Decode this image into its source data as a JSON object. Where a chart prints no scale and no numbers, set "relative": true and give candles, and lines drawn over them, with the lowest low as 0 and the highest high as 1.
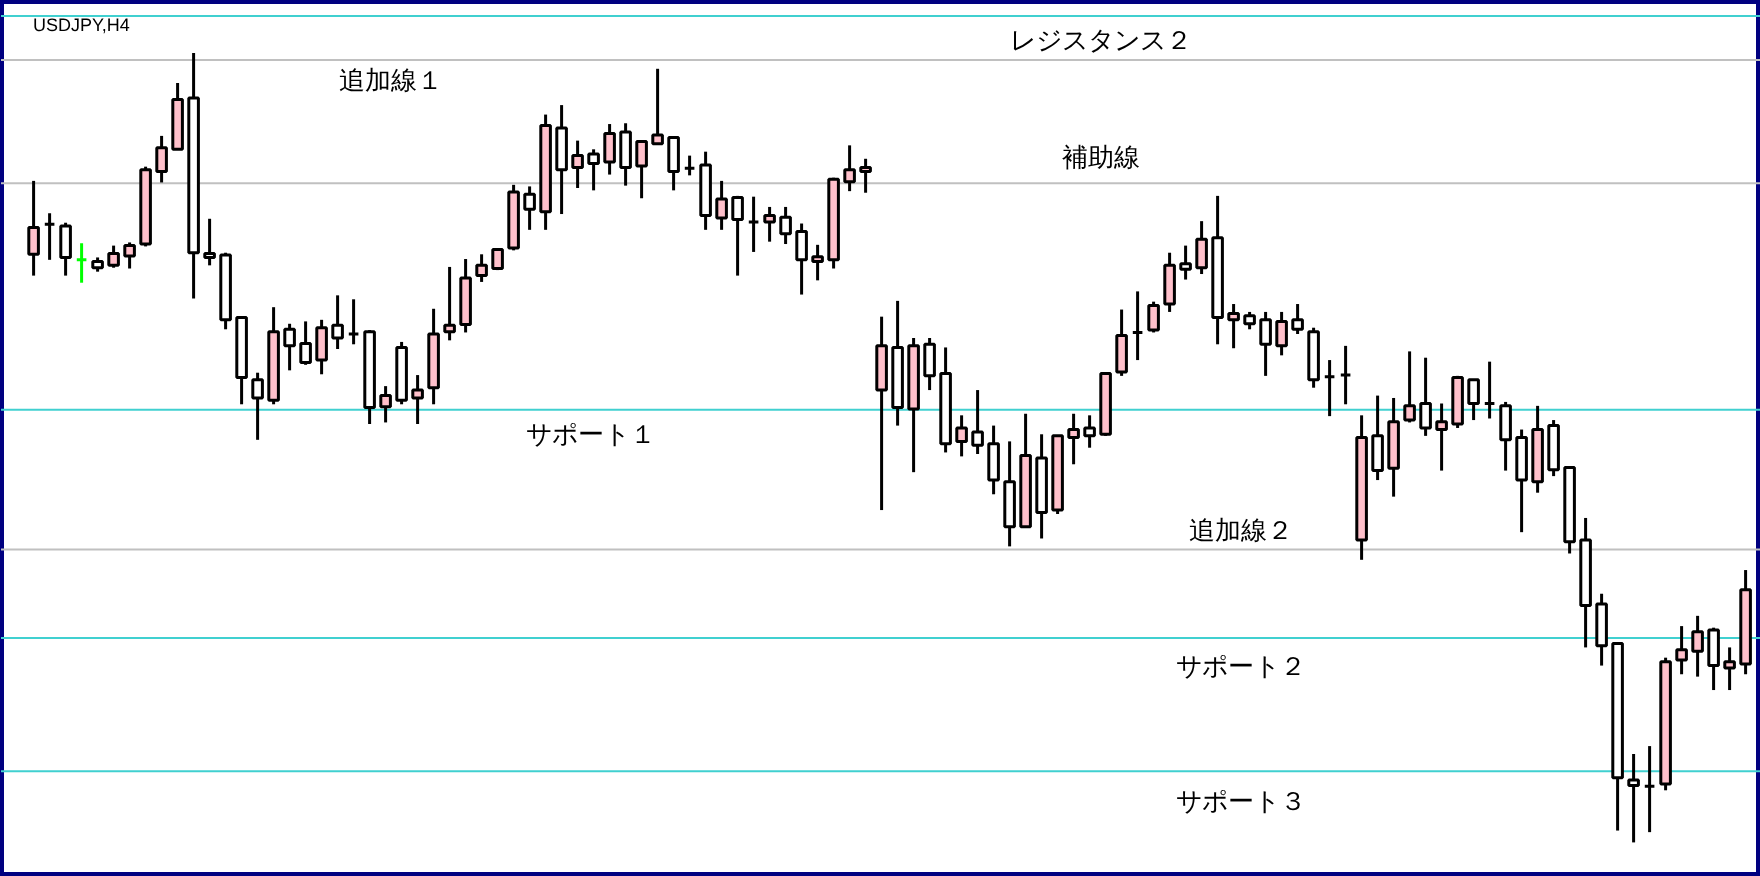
{
  "chart_data": {
    "type": "candlestick",
    "title": "USDJPY,H4",
    "relative": true,
    "tick_labels": false,
    "grid": false,
    "categories": [
      null,
      null,
      null,
      null,
      null,
      null,
      null,
      null,
      null,
      null,
      null,
      null,
      null,
      null,
      null,
      null,
      null,
      null,
      null,
      null,
      null,
      null,
      null,
      null,
      null,
      null,
      null,
      null,
      null,
      null,
      null,
      null,
      null,
      null,
      null,
      null,
      null,
      null,
      null,
      null,
      null,
      null,
      null,
      null,
      null,
      null,
      null,
      null,
      null,
      null,
      null,
      null,
      null,
      null,
      null,
      null,
      null,
      null,
      null,
      null,
      null,
      null,
      null,
      null,
      null,
      null,
      null,
      null,
      null,
      null,
      null,
      null,
      null,
      null,
      null,
      null,
      null,
      null,
      null,
      null,
      null,
      null,
      null,
      null,
      null,
      null,
      null,
      null,
      null,
      null,
      null,
      null,
      null,
      null,
      null,
      null,
      null,
      null,
      null,
      null,
      null,
      null,
      null,
      null,
      null,
      null,
      null,
      null
    ],
    "ohlc": [
      [
        0.745,
        0.838,
        0.718,
        0.779
      ],
      [
        0.783,
        0.797,
        0.738,
        0.783
      ],
      [
        0.781,
        0.785,
        0.718,
        0.741
      ],
      [
        0.738,
        0.759,
        0.709,
        0.738
      ],
      [
        0.736,
        0.741,
        0.723,
        0.728
      ],
      [
        0.731,
        0.756,
        0.728,
        0.746
      ],
      [
        0.743,
        0.76,
        0.727,
        0.756
      ],
      [
        0.758,
        0.856,
        0.755,
        0.852
      ],
      [
        0.85,
        0.895,
        0.836,
        0.88
      ],
      [
        0.878,
        0.962,
        0.878,
        0.941
      ],
      [
        0.943,
        1.0,
        0.689,
        0.747
      ],
      [
        0.746,
        0.79,
        0.731,
        0.741
      ],
      [
        0.744,
        0.747,
        0.65,
        0.662
      ],
      [
        0.665,
        0.665,
        0.555,
        0.589
      ],
      [
        0.586,
        0.595,
        0.51,
        0.563
      ],
      [
        0.56,
        0.678,
        0.555,
        0.647
      ],
      [
        0.65,
        0.657,
        0.598,
        0.629
      ],
      [
        0.632,
        0.66,
        0.605,
        0.608
      ],
      [
        0.611,
        0.662,
        0.593,
        0.652
      ],
      [
        0.655,
        0.693,
        0.625,
        0.639
      ],
      [
        0.644,
        0.688,
        0.631,
        0.644
      ],
      [
        0.647,
        0.649,
        0.53,
        0.551
      ],
      [
        0.552,
        0.578,
        0.532,
        0.566
      ],
      [
        0.627,
        0.634,
        0.555,
        0.56
      ],
      [
        0.563,
        0.592,
        0.53,
        0.573
      ],
      [
        0.576,
        0.676,
        0.555,
        0.644
      ],
      [
        0.647,
        0.729,
        0.636,
        0.655
      ],
      [
        0.656,
        0.739,
        0.646,
        0.715
      ],
      [
        0.718,
        0.745,
        0.71,
        0.731
      ],
      [
        0.727,
        0.752,
        0.725,
        0.751
      ],
      [
        0.753,
        0.833,
        0.75,
        0.824
      ],
      [
        0.821,
        0.831,
        0.776,
        0.802
      ],
      [
        0.799,
        0.922,
        0.776,
        0.908
      ],
      [
        0.905,
        0.934,
        0.796,
        0.852
      ],
      [
        0.855,
        0.889,
        0.829,
        0.87
      ],
      [
        0.872,
        0.878,
        0.826,
        0.86
      ],
      [
        0.862,
        0.91,
        0.846,
        0.898
      ],
      [
        0.9,
        0.911,
        0.832,
        0.855
      ],
      [
        0.857,
        0.889,
        0.816,
        0.888
      ],
      [
        0.885,
        0.98,
        0.885,
        0.896
      ],
      [
        0.893,
        0.893,
        0.826,
        0.85
      ],
      [
        0.854,
        0.87,
        0.845,
        0.854
      ],
      [
        0.858,
        0.875,
        0.776,
        0.794
      ],
      [
        0.791,
        0.838,
        0.776,
        0.815
      ],
      [
        0.817,
        0.819,
        0.718,
        0.789
      ],
      [
        0.786,
        0.818,
        0.748,
        0.786
      ],
      [
        0.786,
        0.805,
        0.761,
        0.794
      ],
      [
        0.792,
        0.805,
        0.758,
        0.771
      ],
      [
        0.774,
        0.784,
        0.694,
        0.738
      ],
      [
        0.736,
        0.757,
        0.712,
        0.742
      ],
      [
        0.738,
        0.842,
        0.727,
        0.84
      ],
      [
        0.837,
        0.883,
        0.825,
        0.852
      ],
      [
        0.85,
        0.866,
        0.823,
        0.855
      ],
      [
        0.573,
        0.666,
        0.421,
        0.629
      ],
      [
        0.627,
        0.686,
        0.528,
        0.551
      ],
      [
        0.549,
        0.639,
        0.469,
        0.629
      ],
      [
        0.631,
        0.639,
        0.573,
        0.591
      ],
      [
        0.594,
        0.627,
        0.494,
        0.505
      ],
      [
        0.508,
        0.541,
        0.489,
        0.525
      ],
      [
        0.52,
        0.573,
        0.492,
        0.503
      ],
      [
        0.505,
        0.528,
        0.441,
        0.459
      ],
      [
        0.457,
        0.508,
        0.375,
        0.4
      ],
      [
        0.4,
        0.543,
        0.4,
        0.49
      ],
      [
        0.487,
        0.517,
        0.385,
        0.418
      ],
      [
        0.421,
        0.515,
        0.416,
        0.515
      ],
      [
        0.513,
        0.543,
        0.479,
        0.523
      ],
      [
        0.525,
        0.541,
        0.5,
        0.515
      ],
      [
        0.517,
        0.594,
        0.515,
        0.594
      ],
      [
        0.596,
        0.675,
        0.591,
        0.642
      ],
      [
        0.646,
        0.698,
        0.611,
        0.646
      ],
      [
        0.649,
        0.685,
        0.646,
        0.68
      ],
      [
        0.682,
        0.747,
        0.672,
        0.731
      ],
      [
        0.733,
        0.756,
        0.713,
        0.726
      ],
      [
        0.728,
        0.787,
        0.72,
        0.764
      ],
      [
        0.766,
        0.819,
        0.631,
        0.665
      ],
      [
        0.662,
        0.682,
        0.626,
        0.67
      ],
      [
        0.667,
        0.672,
        0.65,
        0.657
      ],
      [
        0.662,
        0.672,
        0.591,
        0.631
      ],
      [
        0.629,
        0.672,
        0.617,
        0.66
      ],
      [
        0.662,
        0.682,
        0.644,
        0.65
      ],
      [
        0.647,
        0.652,
        0.576,
        0.586
      ],
      [
        0.59,
        0.611,
        0.54,
        0.59
      ],
      [
        0.592,
        0.629,
        0.555,
        0.592
      ],
      [
        0.383,
        0.541,
        0.358,
        0.513
      ],
      [
        0.515,
        0.566,
        0.459,
        0.471
      ],
      [
        0.474,
        0.563,
        0.438,
        0.533
      ],
      [
        0.535,
        0.622,
        0.532,
        0.553
      ],
      [
        0.556,
        0.614,
        0.515,
        0.525
      ],
      [
        0.523,
        0.556,
        0.471,
        0.533
      ],
      [
        0.53,
        0.591,
        0.525,
        0.589
      ],
      [
        0.586,
        0.586,
        0.535,
        0.556
      ],
      [
        0.556,
        0.609,
        0.537,
        0.556
      ],
      [
        0.553,
        0.558,
        0.471,
        0.51
      ],
      [
        0.513,
        0.523,
        0.393,
        0.459
      ],
      [
        0.457,
        0.553,
        0.443,
        0.523
      ],
      [
        0.528,
        0.535,
        0.464,
        0.472
      ],
      [
        0.475,
        0.475,
        0.366,
        0.381
      ],
      [
        0.383,
        0.411,
        0.247,
        0.3
      ],
      [
        0.302,
        0.315,
        0.224,
        0.249
      ],
      [
        0.252,
        0.252,
        0.015,
        0.082
      ],
      [
        0.079,
        0.112,
        0,
        0.072
      ],
      [
        0.071,
        0.122,
        0.013,
        0.071
      ],
      [
        0.074,
        0.234,
        0.066,
        0.229
      ],
      [
        0.231,
        0.274,
        0.213,
        0.244
      ],
      [
        0.242,
        0.287,
        0.21,
        0.267
      ],
      [
        0.269,
        0.272,
        0.193,
        0.224
      ],
      [
        0.221,
        0.247,
        0.193,
        0.229
      ],
      [
        0.226,
        0.345,
        0.213,
        0.32
      ]
    ],
    "colors": [
      "#ffc0cb",
      "#000000",
      "#ffffff",
      "#00ff00",
      "#ffffff",
      "#ffc0cb",
      "#ffc0cb",
      "#ffc0cb",
      "#ffc0cb",
      "#ffc0cb",
      "#ffffff",
      "#ffffff",
      "#ffffff",
      "#ffffff",
      "#ffffff",
      "#ffc0cb",
      "#ffffff",
      "#ffffff",
      "#ffc0cb",
      "#ffffff",
      "#000000",
      "#ffffff",
      "#ffc0cb",
      "#ffffff",
      "#ffc0cb",
      "#ffc0cb",
      "#ffc0cb",
      "#ffc0cb",
      "#ffc0cb",
      "#ffc0cb",
      "#ffc0cb",
      "#ffffff",
      "#ffc0cb",
      "#ffffff",
      "#ffc0cb",
      "#ffffff",
      "#ffc0cb",
      "#ffffff",
      "#ffc0cb",
      "#ffc0cb",
      "#ffffff",
      "#000000",
      "#ffffff",
      "#ffc0cb",
      "#ffffff",
      "#000000",
      "#ffc0cb",
      "#ffffff",
      "#ffffff",
      "#ffc0cb",
      "#ffc0cb",
      "#ffc0cb",
      "#ffc0cb",
      "#ffc0cb",
      "#ffffff",
      "#ffc0cb",
      "#ffffff",
      "#ffffff",
      "#ffc0cb",
      "#ffffff",
      "#ffffff",
      "#ffffff",
      "#ffc0cb",
      "#ffffff",
      "#ffc0cb",
      "#ffc0cb",
      "#ffffff",
      "#ffc0cb",
      "#ffc0cb",
      "#000000",
      "#ffc0cb",
      "#ffc0cb",
      "#ffffff",
      "#ffc0cb",
      "#ffffff",
      "#ffc0cb",
      "#ffffff",
      "#ffffff",
      "#ffc0cb",
      "#ffffff",
      "#ffffff",
      "#000000",
      "#000000",
      "#ffc0cb",
      "#ffffff",
      "#ffc0cb",
      "#ffc0cb",
      "#ffffff",
      "#ffc0cb",
      "#ffc0cb",
      "#ffffff",
      "#000000",
      "#ffffff",
      "#ffffff",
      "#ffc0cb",
      "#ffffff",
      "#ffffff",
      "#ffffff",
      "#ffffff",
      "#ffffff",
      "#ffffff",
      "#000000",
      "#ffc0cb",
      "#ffc0cb",
      "#ffc0cb",
      "#ffffff",
      "#ffc0cb",
      "#ffc0cb"
    ],
    "ref_lines": [
      {
        "axis": "y",
        "value": 1.047,
        "label": "レジスタンス２",
        "color": "#40d0d0"
      },
      {
        "axis": "y",
        "value": 0.991,
        "label": "追加線１",
        "color": "#c0c0c0"
      },
      {
        "axis": "y",
        "value": 0.835,
        "label": "補助線",
        "color": "#c0c0c0"
      },
      {
        "axis": "y",
        "value": 0.548,
        "label": "サポート１",
        "color": "#40d0d0"
      },
      {
        "axis": "y",
        "value": 0.371,
        "label": "追加線２",
        "color": "#c0c0c0"
      },
      {
        "axis": "y",
        "value": 0.259,
        "label": "サポート２",
        "color": "#40d0d0"
      },
      {
        "axis": "y",
        "value": 0.09,
        "label": "サポート３",
        "color": "#40d0d0"
      }
    ]
  }
}
